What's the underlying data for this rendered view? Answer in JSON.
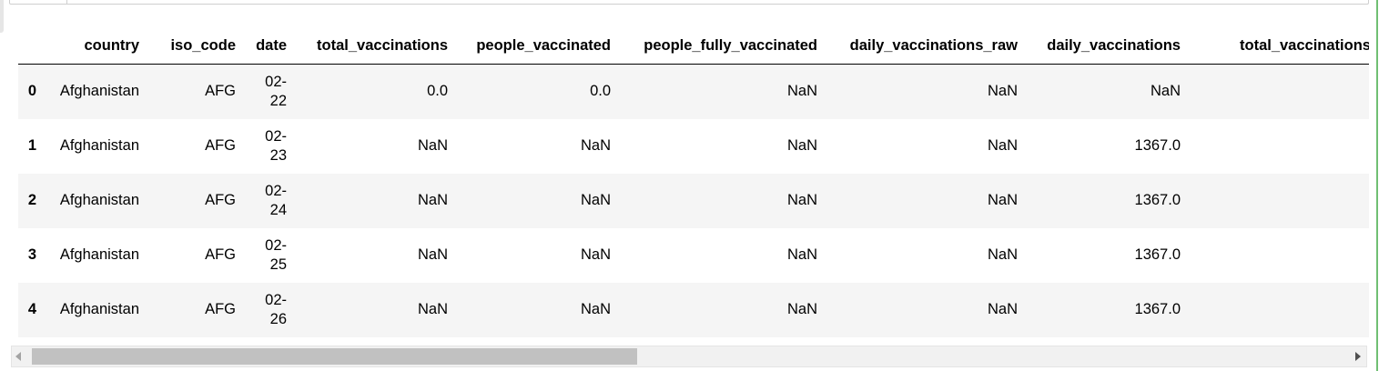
{
  "table": {
    "columns": [
      "",
      "country",
      "iso_code",
      "date",
      "total_vaccinations",
      "people_vaccinated",
      "people_fully_vaccinated",
      "daily_vaccinations_raw",
      "daily_vaccinations",
      "total_vaccinations_per_"
    ],
    "rows": [
      {
        "index": "0",
        "country": "Afghanistan",
        "iso_code": "AFG",
        "date": "02-22",
        "total_vaccinations": "0.0",
        "people_vaccinated": "0.0",
        "people_fully_vaccinated": "NaN",
        "daily_vaccinations_raw": "NaN",
        "daily_vaccinations": "NaN",
        "total_vaccinations_per_": ""
      },
      {
        "index": "1",
        "country": "Afghanistan",
        "iso_code": "AFG",
        "date": "02-23",
        "total_vaccinations": "NaN",
        "people_vaccinated": "NaN",
        "people_fully_vaccinated": "NaN",
        "daily_vaccinations_raw": "NaN",
        "daily_vaccinations": "1367.0",
        "total_vaccinations_per_": ""
      },
      {
        "index": "2",
        "country": "Afghanistan",
        "iso_code": "AFG",
        "date": "02-24",
        "total_vaccinations": "NaN",
        "people_vaccinated": "NaN",
        "people_fully_vaccinated": "NaN",
        "daily_vaccinations_raw": "NaN",
        "daily_vaccinations": "1367.0",
        "total_vaccinations_per_": ""
      },
      {
        "index": "3",
        "country": "Afghanistan",
        "iso_code": "AFG",
        "date": "02-25",
        "total_vaccinations": "NaN",
        "people_vaccinated": "NaN",
        "people_fully_vaccinated": "NaN",
        "daily_vaccinations_raw": "NaN",
        "daily_vaccinations": "1367.0",
        "total_vaccinations_per_": ""
      },
      {
        "index": "4",
        "country": "Afghanistan",
        "iso_code": "AFG",
        "date": "02-26",
        "total_vaccinations": "NaN",
        "people_vaccinated": "NaN",
        "people_fully_vaccinated": "NaN",
        "daily_vaccinations_raw": "NaN",
        "daily_vaccinations": "1367.0",
        "total_vaccinations_per_": ""
      }
    ]
  },
  "scrollbar": {
    "position_fraction": 0.0,
    "visible_fraction": 0.46
  },
  "colors": {
    "alt_row": "#f5f5f5",
    "header_rule": "#000000",
    "scroll_thumb": "#c1c1c1",
    "scroll_track": "#f1f1f1",
    "cell_edge": "#4caf50"
  }
}
